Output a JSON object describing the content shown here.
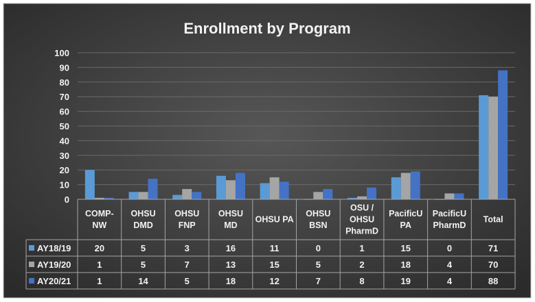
{
  "chart_data": {
    "type": "bar",
    "title": "Enrollment by Program",
    "xlabel": "",
    "ylabel": "",
    "ylim": [
      0,
      100
    ],
    "yticks": [
      0,
      10,
      20,
      30,
      40,
      50,
      60,
      70,
      80,
      90,
      100
    ],
    "grid": true,
    "legend_placement": "bottom-left (data table)",
    "categories": [
      [
        "COMP-",
        "NW"
      ],
      [
        "OHSU",
        "DMD"
      ],
      [
        "OHSU",
        "FNP"
      ],
      [
        "OHSU",
        "MD"
      ],
      [
        "OHSU PA"
      ],
      [
        "OHSU",
        "BSN"
      ],
      [
        "OSU /",
        "OHSU",
        "PharmD"
      ],
      [
        "PacificU",
        "PA"
      ],
      [
        "PacificU",
        "PharmD"
      ],
      [
        "Total"
      ]
    ],
    "series": [
      {
        "name": "AY18/19",
        "color": "#5b9bd5",
        "values": [
          20,
          5,
          3,
          16,
          11,
          0,
          1,
          15,
          0,
          71
        ]
      },
      {
        "name": "AY19/20",
        "color": "#a5a5a5",
        "values": [
          1,
          5,
          7,
          13,
          15,
          5,
          2,
          18,
          4,
          70
        ]
      },
      {
        "name": "AY20/21",
        "color": "#4472c4",
        "values": [
          1,
          14,
          5,
          18,
          12,
          7,
          8,
          19,
          4,
          88
        ]
      }
    ]
  }
}
